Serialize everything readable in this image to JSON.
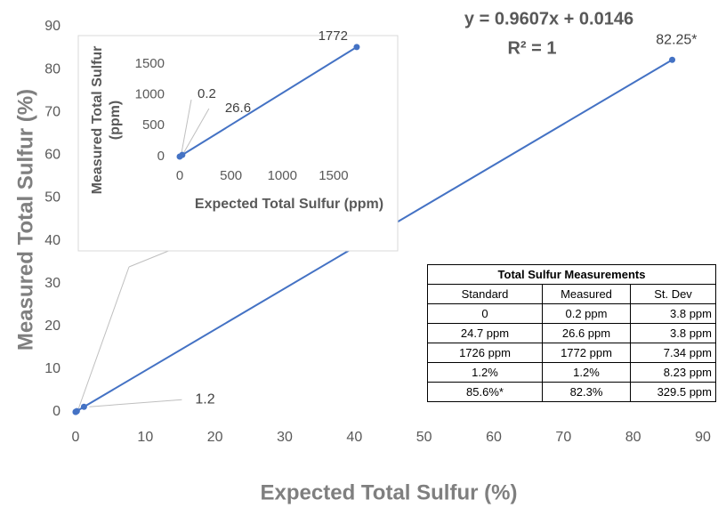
{
  "chart_data": [
    {
      "type": "scatter",
      "mode": "lines+markers",
      "x_label": "Expected Total Sulfur (%)",
      "y_label": "Measured Total Sulfur  (%)",
      "equation": "y = 0.9607x + 0.0146",
      "r_squared": "R² = 1",
      "xlim": [
        0,
        90
      ],
      "ylim": [
        0,
        90
      ],
      "xticks": [
        0,
        10,
        20,
        30,
        40,
        50,
        60,
        70,
        80,
        90
      ],
      "yticks": [
        0,
        10,
        20,
        30,
        40,
        50,
        60,
        70,
        80,
        90
      ],
      "series": [
        {
          "color": "#4472c4",
          "x": [
            0,
            0.00247,
            0.1726,
            1.2,
            85.6
          ],
          "values": [
            2e-05,
            0.00266,
            0.1772,
            1.2,
            82.25
          ],
          "value_labels": [
            null,
            null,
            null,
            "1.2",
            "82.25*"
          ]
        }
      ]
    },
    {
      "type": "scatter",
      "mode": "lines+markers",
      "x_label": "Expected Total Sulfur (ppm)",
      "y_label": [
        "Measured Total Sulfur",
        "(ppm)"
      ],
      "xlim": [
        0,
        1900
      ],
      "ylim": [
        0,
        1900
      ],
      "xticks": [
        0,
        500,
        1000,
        1500
      ],
      "yticks": [
        0,
        500,
        1000,
        1500
      ],
      "series": [
        {
          "color": "#4472c4",
          "x": [
            0,
            24.7,
            1726
          ],
          "values": [
            0.2,
            26.6,
            1772
          ]
        }
      ]
    }
  ],
  "table": {
    "title": "Total Sulfur Measurements",
    "header": [
      "Standard",
      "Measured",
      "St. Dev"
    ],
    "rows": [
      [
        "0",
        "0.2 ppm",
        "3.8 ppm"
      ],
      [
        "24.7 ppm",
        "26.6 ppm",
        "3.8 ppm"
      ],
      [
        "1726 ppm",
        "1772 ppm",
        "7.34 ppm"
      ],
      [
        "1.2%",
        "1.2%",
        "8.23 ppm"
      ],
      [
        "85.6%*",
        "82.3%",
        "329.5 ppm"
      ]
    ]
  }
}
